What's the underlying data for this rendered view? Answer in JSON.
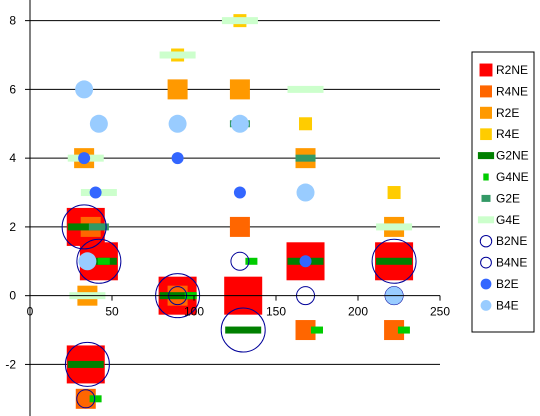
{
  "chart_data": {
    "type": "scatter",
    "title": "",
    "xlabel": "",
    "ylabel": "",
    "xlim": [
      0,
      250
    ],
    "ylim": [
      -3.5,
      8.6
    ],
    "x_ticks": [
      0,
      50,
      100,
      150,
      200,
      250
    ],
    "y_ticks": [
      -2,
      0,
      2,
      4,
      6,
      8
    ],
    "x_tick_labels": [
      "0",
      "50",
      "100",
      "150",
      "200",
      "250"
    ],
    "y_tick_labels": [
      "-2",
      "0",
      "2",
      "4",
      "6",
      "8"
    ],
    "grid": "horizontal major gridlines",
    "legend_position": "right",
    "series": [
      {
        "name": "R2NE",
        "marker": "square",
        "color": "#ff0000",
        "size": "large",
        "points": [
          [
            34,
            2
          ],
          [
            42,
            1
          ],
          [
            90,
            0
          ],
          [
            130,
            0
          ],
          [
            168,
            1
          ],
          [
            222,
            1
          ],
          [
            34,
            -2
          ]
        ]
      },
      {
        "name": "R4NE",
        "marker": "square",
        "color": "#ff6600",
        "size": "medium",
        "points": [
          [
            37,
            2
          ],
          [
            90,
            0
          ],
          [
            128,
            2
          ],
          [
            168,
            -1
          ],
          [
            222,
            -1
          ],
          [
            34,
            -3
          ]
        ]
      },
      {
        "name": "R2E",
        "marker": "square",
        "color": "#ff9900",
        "size": "medium",
        "points": [
          [
            33,
            4
          ],
          [
            35,
            0
          ],
          [
            90,
            6
          ],
          [
            128,
            6
          ],
          [
            168,
            4
          ],
          [
            222,
            2
          ]
        ]
      },
      {
        "name": "R4E",
        "marker": "square",
        "color": "#ffcc00",
        "size": "small",
        "points": [
          [
            90,
            7
          ],
          [
            128,
            8
          ],
          [
            168,
            5
          ],
          [
            222,
            3
          ]
        ]
      },
      {
        "name": "G2NE",
        "marker": "dash",
        "color": "#008000",
        "size": "large",
        "points": [
          [
            34,
            2
          ],
          [
            42,
            1
          ],
          [
            90,
            0
          ],
          [
            130,
            -1
          ],
          [
            168,
            1
          ],
          [
            222,
            1
          ],
          [
            34,
            -2
          ]
        ]
      },
      {
        "name": "G4NE",
        "marker": "dash",
        "color": "#00cc00",
        "size": "small",
        "points": [
          [
            45,
            1
          ],
          [
            98,
            0
          ],
          [
            135,
            1
          ],
          [
            175,
            -1
          ],
          [
            228,
            -1
          ],
          [
            40,
            -3
          ]
        ]
      },
      {
        "name": "G2E",
        "marker": "dash",
        "color": "#339966",
        "size": "medium",
        "points": [
          [
            42,
            2
          ],
          [
            128,
            5
          ],
          [
            168,
            4
          ]
        ]
      },
      {
        "name": "G4E",
        "marker": "dash",
        "color": "#ccffcc",
        "size": "large",
        "points": [
          [
            34,
            4
          ],
          [
            42,
            3
          ],
          [
            35,
            0
          ],
          [
            90,
            7
          ],
          [
            128,
            8
          ],
          [
            168,
            6
          ],
          [
            222,
            2
          ]
        ]
      },
      {
        "name": "B2NE",
        "marker": "circle-open",
        "color": "#000099",
        "size": "large",
        "points": [
          [
            33,
            2
          ],
          [
            42,
            1
          ],
          [
            90,
            0
          ],
          [
            130,
            -1
          ],
          [
            222,
            1
          ],
          [
            35,
            -2
          ]
        ]
      },
      {
        "name": "B4NE",
        "marker": "circle-open",
        "color": "#000099",
        "size": "medium",
        "points": [
          [
            128,
            1
          ],
          [
            168,
            0
          ],
          [
            222,
            0
          ],
          [
            90,
            0
          ],
          [
            34,
            -3
          ]
        ]
      },
      {
        "name": "B2E",
        "marker": "circle-filled",
        "color": "#3366ff",
        "size": "small",
        "points": [
          [
            33,
            4
          ],
          [
            40,
            3
          ],
          [
            90,
            4
          ],
          [
            128,
            3
          ],
          [
            168,
            1
          ]
        ]
      },
      {
        "name": "B4E",
        "marker": "circle-filled",
        "color": "#99ccff",
        "size": "medium",
        "points": [
          [
            33,
            6
          ],
          [
            42,
            5
          ],
          [
            35,
            1
          ],
          [
            90,
            5
          ],
          [
            128,
            5
          ],
          [
            168,
            3
          ],
          [
            222,
            0
          ]
        ]
      }
    ]
  }
}
